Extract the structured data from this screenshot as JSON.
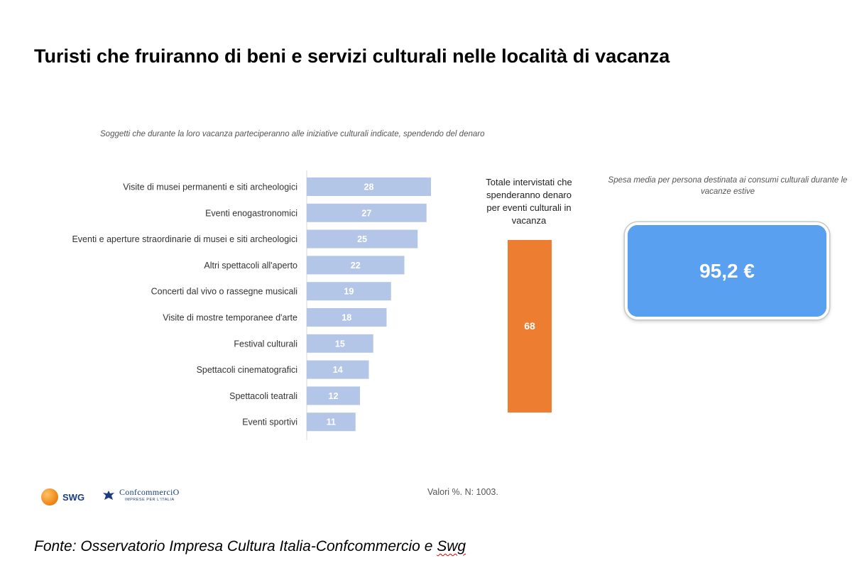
{
  "title": "Turisti che fruiranno di beni e servizi culturali nelle località di vacanza",
  "subtitle": "Soggetti che durante la loro vacanza parteciperanno alle iniziative culturali indicate, spendendo del denaro",
  "chart_data": [
    {
      "type": "bar",
      "orientation": "horizontal",
      "categories": [
        "Visite di musei permanenti e siti archeologici",
        "Eventi enogastronomici",
        "Eventi e aperture straordinarie di musei e siti archeologici",
        "Altri spettacoli all'aperto",
        "Concerti dal vivo o rassegne musicali",
        "Visite di mostre temporanee d'arte",
        "Festival culturali",
        "Spettacoli cinematografici",
        "Spettacoli teatrali",
        "Eventi sportivi"
      ],
      "values": [
        28,
        27,
        25,
        22,
        19,
        18,
        15,
        14,
        12,
        11
      ],
      "xlim": [
        0,
        100
      ],
      "color": "#b4c6e7",
      "value_label_color": "#ffffff",
      "grid": false
    },
    {
      "type": "bar",
      "title": "Totale intervistati che spenderanno denaro per eventi culturali in vacanza",
      "categories": [
        ""
      ],
      "values": [
        68
      ],
      "ylim": [
        0,
        100
      ],
      "color": "#ed7d31"
    }
  ],
  "spend": {
    "caption": "Spesa media per persona destinata ai consumi culturali durante le vacanze estive",
    "value": "95,2 €",
    "color": "#5aa0f0"
  },
  "note": "Valori %. N: 1003.",
  "logos": {
    "swg": "SWG",
    "confcommercio": "ConfcommerciO",
    "confcommercio_tagline": "IMPRESE PER L'ITALIA"
  },
  "source": {
    "prefix": "Fonte: Osservatorio Impresa Cultura Italia-Confcommercio e ",
    "suffix": "Swg"
  }
}
